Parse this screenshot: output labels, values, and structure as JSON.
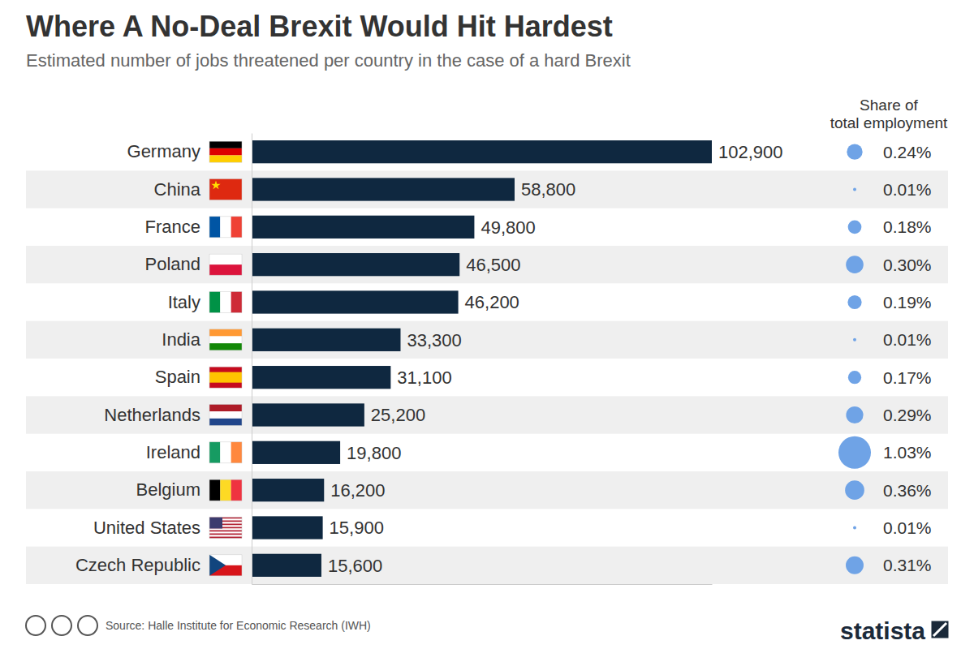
{
  "chart_data": {
    "type": "bar",
    "orientation": "horizontal",
    "title": "Where A No-Deal Brexit Would Hit Hardest",
    "subtitle": "Estimated number of jobs threatened per country in the case of a hard Brexit",
    "categories": [
      "Germany",
      "China",
      "France",
      "Poland",
      "Italy",
      "India",
      "Spain",
      "Netherlands",
      "Ireland",
      "Belgium",
      "United States",
      "Czech Republic"
    ],
    "values": [
      102900,
      58800,
      49800,
      46500,
      46200,
      33300,
      31100,
      25200,
      19800,
      16200,
      15900,
      15600
    ],
    "value_labels": [
      "102,900",
      "58,800",
      "49,800",
      "46,500",
      "46,200",
      "33,300",
      "31,100",
      "25,200",
      "19,800",
      "16,200",
      "15,900",
      "15,600"
    ],
    "color": "#0f2840",
    "xlim": [
      0,
      102900
    ],
    "data_labels": true,
    "tick_labels": "y",
    "grid": false,
    "share_title": "Share of total employment",
    "share": [
      0.24,
      0.01,
      0.18,
      0.3,
      0.19,
      0.01,
      0.17,
      0.29,
      1.03,
      0.36,
      0.01,
      0.31
    ],
    "share_labels": [
      "0.24%",
      "0.01%",
      "0.18%",
      "0.30%",
      "0.19%",
      "0.01%",
      "0.17%",
      "0.29%",
      "1.03%",
      "0.36%",
      "0.01%",
      "0.31%"
    ],
    "share_color": "#6fa3e6",
    "source": "Source: Halle Institute for Economic Research (IWH)",
    "brand": "statista"
  }
}
